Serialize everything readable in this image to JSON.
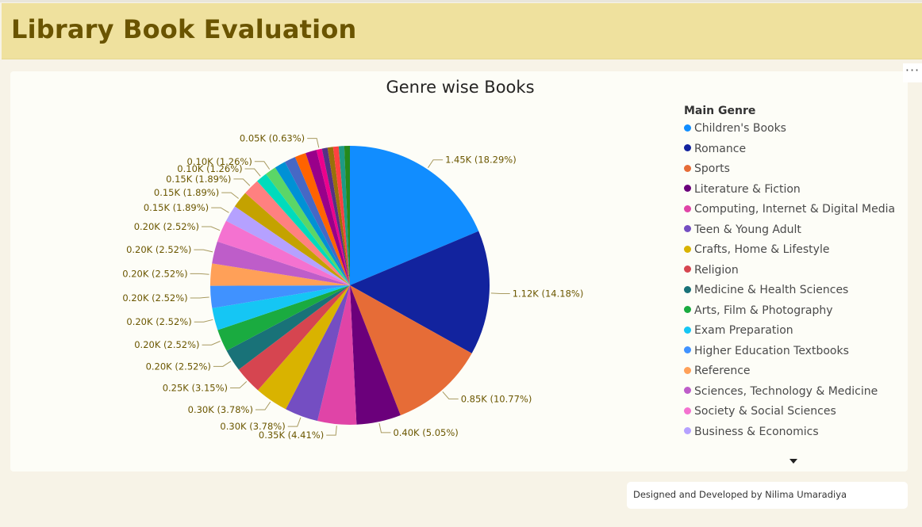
{
  "page": {
    "title": "Library Book Evaluation",
    "footer": "Designed and Developed by Nilima Umaradiya"
  },
  "chart_data": {
    "type": "pie",
    "title": "Genre wise Books",
    "legend_title": "Main Genre",
    "legend_placement": "right",
    "slices": [
      {
        "name": "Children's Books",
        "percent": 18.29,
        "label": "1.45K (18.29%)",
        "color": "#118DFF"
      },
      {
        "name": "Romance",
        "percent": 14.18,
        "label": "1.12K (14.18%)",
        "color": "#12239E"
      },
      {
        "name": "Sports",
        "percent": 10.77,
        "label": "0.85K (10.77%)",
        "color": "#E66C37"
      },
      {
        "name": "Literature & Fiction",
        "percent": 5.05,
        "label": "0.40K (5.05%)",
        "color": "#6B007B"
      },
      {
        "name": "Computing, Internet & Digital Media",
        "percent": 4.41,
        "label": "0.35K (4.41%)",
        "color": "#E044A7"
      },
      {
        "name": "Teen & Young Adult",
        "percent": 3.78,
        "label": "0.30K (3.78%)",
        "color": "#744EC2"
      },
      {
        "name": "Crafts, Home & Lifestyle",
        "percent": 3.78,
        "label": "0.30K (3.78%)",
        "color": "#D9B300"
      },
      {
        "name": "Religion",
        "percent": 3.15,
        "label": "0.25K (3.15%)",
        "color": "#D64550"
      },
      {
        "name": "Medicine & Health Sciences",
        "percent": 2.52,
        "label": "0.20K (2.52%)",
        "color": "#197278"
      },
      {
        "name": "Arts, Film & Photography",
        "percent": 2.52,
        "label": "0.20K (2.52%)",
        "color": "#1AAB40"
      },
      {
        "name": "Exam Preparation",
        "percent": 2.52,
        "label": "0.20K (2.52%)",
        "color": "#15C6F4"
      },
      {
        "name": "Higher Education Textbooks",
        "percent": 2.52,
        "label": "0.20K (2.52%)",
        "color": "#4092FF"
      },
      {
        "name": "Reference",
        "percent": 2.52,
        "label": "0.20K (2.52%)",
        "color": "#FFA058"
      },
      {
        "name": "Sciences, Technology & Medicine",
        "percent": 2.52,
        "label": "0.20K (2.52%)",
        "color": "#BE5DC9"
      },
      {
        "name": "Society & Social Sciences",
        "percent": 2.52,
        "label": "0.20K (2.52%)",
        "color": "#F472D0"
      },
      {
        "name": "Business & Economics",
        "percent": 1.89,
        "label": "0.15K (1.89%)",
        "color": "#B5A1FF"
      },
      {
        "name": "",
        "percent": 1.89,
        "label": "0.15K (1.89%)",
        "color": "#C4A200"
      },
      {
        "name": "",
        "percent": 1.89,
        "label": "0.15K (1.89%)",
        "color": "#FF8080"
      },
      {
        "name": "",
        "percent": 1.26,
        "label": "0.10K (1.26%)",
        "color": "#00DBBC"
      },
      {
        "name": "",
        "percent": 1.26,
        "label": "0.10K (1.26%)",
        "color": "#5BD667"
      },
      {
        "name": "",
        "percent": 1.26,
        "label": "",
        "color": "#0091D5"
      },
      {
        "name": "",
        "percent": 1.26,
        "label": "",
        "color": "#4668C5"
      },
      {
        "name": "",
        "percent": 1.26,
        "label": "",
        "color": "#FF6300"
      },
      {
        "name": "",
        "percent": 1.26,
        "label": "",
        "color": "#99008A"
      },
      {
        "name": "",
        "percent": 0.63,
        "label": "0.05K (0.63%)",
        "color": "#EC008C"
      },
      {
        "name": "",
        "percent": 0.63,
        "label": "",
        "color": "#533285"
      },
      {
        "name": "",
        "percent": 0.63,
        "label": "",
        "color": "#99700A"
      },
      {
        "name": "",
        "percent": 0.63,
        "label": "",
        "color": "#FF4141"
      },
      {
        "name": "",
        "percent": 0.63,
        "label": "",
        "color": "#1F9A85"
      },
      {
        "name": "",
        "percent": 0.63,
        "label": "",
        "color": "#25891C"
      }
    ]
  },
  "legend_items": [
    {
      "label": "Children's Books",
      "color": "#118DFF"
    },
    {
      "label": "Romance",
      "color": "#12239E"
    },
    {
      "label": "Sports",
      "color": "#E66C37"
    },
    {
      "label": "Literature & Fiction",
      "color": "#6B007B"
    },
    {
      "label": "Computing, Internet & Digital Media",
      "color": "#E044A7"
    },
    {
      "label": "Teen & Young Adult",
      "color": "#744EC2"
    },
    {
      "label": "Crafts, Home & Lifestyle",
      "color": "#D9B300"
    },
    {
      "label": "Religion",
      "color": "#D64550"
    },
    {
      "label": "Medicine & Health Sciences",
      "color": "#197278"
    },
    {
      "label": "Arts, Film & Photography",
      "color": "#1AAB40"
    },
    {
      "label": "Exam Preparation",
      "color": "#15C6F4"
    },
    {
      "label": "Higher Education Textbooks",
      "color": "#4092FF"
    },
    {
      "label": "Reference",
      "color": "#FFA058"
    },
    {
      "label": "Sciences, Technology & Medicine",
      "color": "#BE5DC9"
    },
    {
      "label": "Society & Social Sciences",
      "color": "#F472D0"
    },
    {
      "label": "Business & Economics",
      "color": "#B5A1FF"
    }
  ],
  "controls": {
    "more_options_icon": "ellipsis-icon",
    "legend_scroll_icon": "caret-down-icon",
    "more_options_label": "···"
  }
}
